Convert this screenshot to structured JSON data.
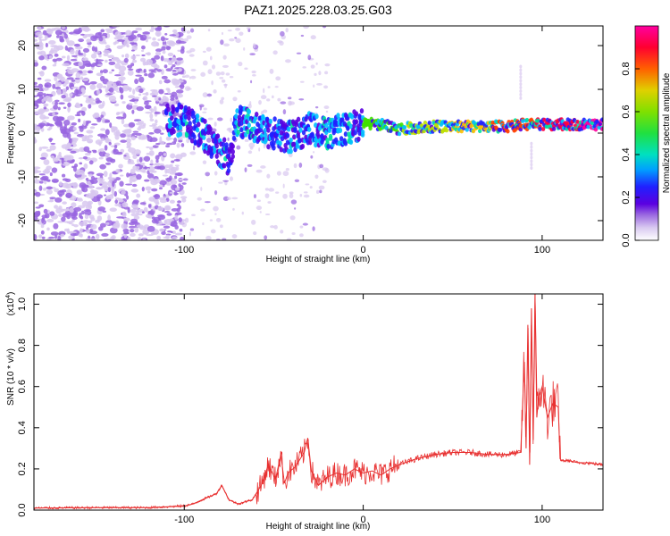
{
  "title": "PAZ1.2025.228.03.25.G03",
  "chart_data": [
    {
      "type": "heatmap",
      "xlabel": "Height of straight line (km)",
      "ylabel": "Frequency (Hz)",
      "xlim": [
        -184,
        134
      ],
      "ylim": [
        -24.5,
        24.5
      ],
      "xticks": [
        -100,
        0,
        100
      ],
      "yticks": [
        -20,
        -10,
        0,
        10,
        20
      ],
      "colorbar": {
        "label": "Normalized spectral amplitude",
        "range": [
          0,
          1
        ],
        "ticks": [
          "0.0",
          "0.2",
          "0.4",
          "0.6",
          "0.8"
        ],
        "colors": [
          "#ffffff",
          "#d8c8f0",
          "#9966e0",
          "#5a00e0",
          "#2020ff",
          "#00c0ff",
          "#00e0a0",
          "#40e000",
          "#c0e000",
          "#ffc000",
          "#ff4000",
          "#ff0040",
          "#ff00a0"
        ]
      },
      "ridge": {
        "x": [
          -100,
          -90,
          -80,
          -75,
          -70,
          -60,
          -50,
          -40,
          -30,
          -20,
          -10,
          0,
          10,
          20,
          40,
          60,
          80,
          90,
          100,
          110,
          134
        ],
        "y": [
          3,
          0,
          -4,
          -6,
          3,
          1,
          0,
          -1,
          1,
          0,
          1,
          2,
          2,
          1,
          1.5,
          1.5,
          1.5,
          2,
          2,
          2,
          2
        ]
      }
    },
    {
      "type": "line",
      "xlabel": "Height of straight line (km)",
      "ylabel": "SNR (10 * v/v)",
      "scale_label": "(x10",
      "scale_exponent": "4",
      "xlim": [
        -184,
        134
      ],
      "ylim": [
        0,
        1.05
      ],
      "xticks": [
        -100,
        0,
        100
      ],
      "yticks": [
        "0.0",
        "0.2",
        "0.4",
        "0.6",
        "0.8",
        "1.0"
      ],
      "line_color": "#e83030",
      "x": [
        -184,
        -150,
        -120,
        -100,
        -95,
        -90,
        -82,
        -79,
        -75,
        -70,
        -62,
        -57,
        -53,
        -49,
        -46,
        -44,
        -42,
        -38,
        -33,
        -31,
        -29,
        -25,
        -20,
        -15,
        -10,
        -5,
        0,
        5,
        10,
        15,
        20,
        30,
        40,
        50,
        60,
        70,
        80,
        88,
        90,
        91,
        92,
        93,
        94,
        95,
        96,
        97,
        98,
        100,
        103,
        106,
        109,
        110,
        111,
        115,
        120,
        125,
        134
      ],
      "y": [
        0.01,
        0.012,
        0.012,
        0.02,
        0.03,
        0.05,
        0.08,
        0.12,
        0.05,
        0.03,
        0.05,
        0.12,
        0.22,
        0.15,
        0.27,
        0.13,
        0.18,
        0.21,
        0.28,
        0.35,
        0.19,
        0.12,
        0.16,
        0.18,
        0.17,
        0.2,
        0.18,
        0.19,
        0.17,
        0.2,
        0.22,
        0.25,
        0.27,
        0.28,
        0.28,
        0.27,
        0.27,
        0.28,
        0.72,
        0.3,
        0.9,
        0.22,
        0.98,
        0.34,
        1.05,
        0.45,
        0.55,
        0.6,
        0.45,
        0.52,
        0.5,
        0.25,
        0.24,
        0.24,
        0.23,
        0.23,
        0.22
      ]
    }
  ]
}
